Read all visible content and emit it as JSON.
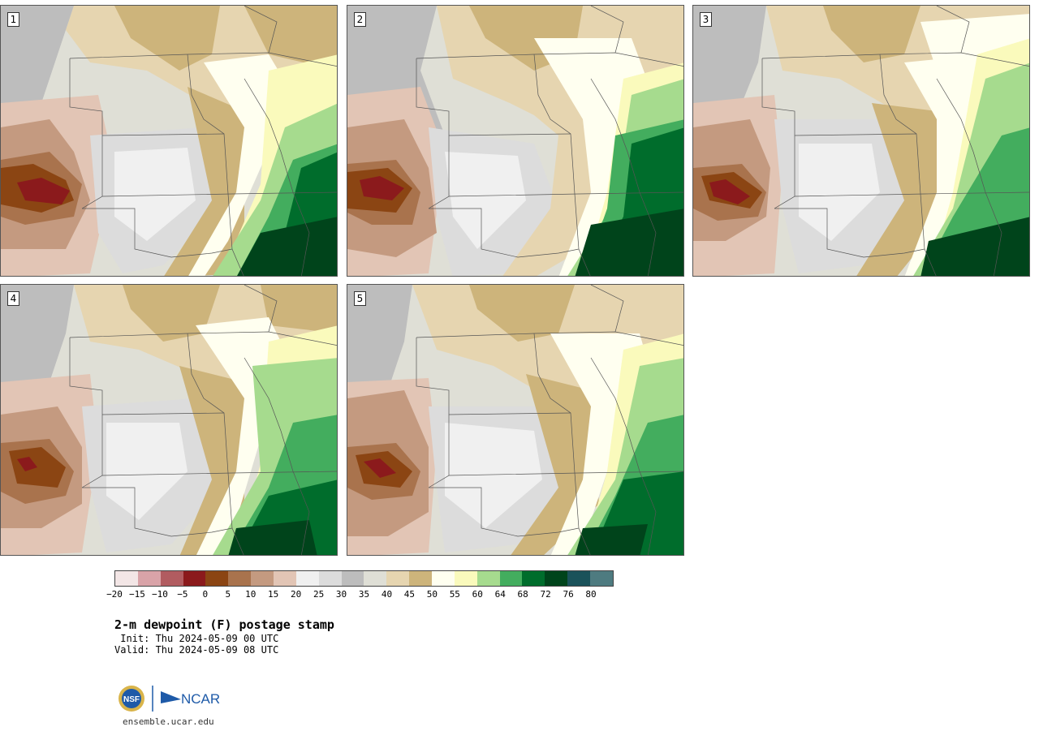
{
  "panels": [
    {
      "label": "1"
    },
    {
      "label": "2"
    },
    {
      "label": "3"
    },
    {
      "label": "4"
    },
    {
      "label": "5"
    }
  ],
  "colorbar": {
    "colors": [
      "#f3e6e6",
      "#d9a3a8",
      "#b15c60",
      "#8b1a1c",
      "#8b4513",
      "#a9734d",
      "#c49a80",
      "#e2c5b5",
      "#f0f0f0",
      "#dcdcdc",
      "#bdbdbd",
      "#dfdfd6",
      "#e6d5b0",
      "#cdb47b",
      "#fffff0",
      "#fafabc",
      "#a6db8e",
      "#43ad5e",
      "#006d2c",
      "#00441b",
      "#1a525a",
      "#4e7b80"
    ],
    "tick_labels": [
      "−20",
      "−15",
      "−10",
      "−5",
      "0",
      "5",
      "10",
      "15",
      "20",
      "25",
      "30",
      "35",
      "40",
      "45",
      "50",
      "55",
      "60",
      "64",
      "68",
      "72",
      "76",
      "80"
    ]
  },
  "title": "2-m dewpoint (F) postage stamp",
  "init": " Init: Thu 2024-05-09 00 UTC",
  "valid": "Valid: Thu 2024-05-09 08 UTC",
  "logos": {
    "nsf": "NSF",
    "ncar": "NCAR"
  },
  "site": "ensemble.ucar.edu"
}
